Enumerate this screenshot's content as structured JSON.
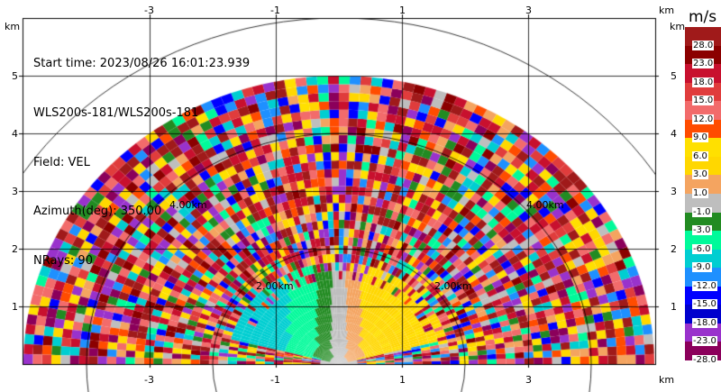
{
  "header": {
    "start_time": "Start time: 2023/08/26 16:01:23.939",
    "instrument": "WLS200s-181/WLS200s-181",
    "field": "Field: VEL",
    "azimuth": "Azimuth(deg): 350.00",
    "nrays": "NRays: 90"
  },
  "axes": {
    "unit": "km",
    "x_ticks": [
      "-3",
      "-1",
      "1",
      "3"
    ],
    "y_ticks": [
      "1",
      "2",
      "3",
      "4",
      "5"
    ],
    "range_rings": [
      "2.00km",
      "4.00km"
    ]
  },
  "colorbar": {
    "title": "m/s",
    "labels": [
      "28.0",
      "23.0",
      "18.0",
      "15.0",
      "12.0",
      "9.0",
      "6.0",
      "3.0",
      "1.0",
      "-1.0",
      "-3.0",
      "-6.0",
      "-9.0",
      "-12.0",
      "-15.0",
      "-18.0",
      "-23.0",
      "-28.0"
    ],
    "colors": [
      "#A01A1A",
      "#8B0000",
      "#C8102E",
      "#E03C3C",
      "#F26B6B",
      "#FF4C00",
      "#FFE000",
      "#FFD700",
      "#F4A460",
      "#BEBEBE",
      "#228B22",
      "#00FA9A",
      "#00CED1",
      "#1E90FF",
      "#0000FF",
      "#0000CD",
      "#9932CC",
      "#8B005B"
    ]
  },
  "chart_data": {
    "type": "heatmap",
    "title": "",
    "xlabel": "km",
    "ylabel": "km",
    "xlim": [
      -4.0,
      4.0
    ],
    "ylim": [
      0,
      5.9
    ],
    "field": "VEL",
    "azimuth_deg": 350.0,
    "nrays": 90
  }
}
